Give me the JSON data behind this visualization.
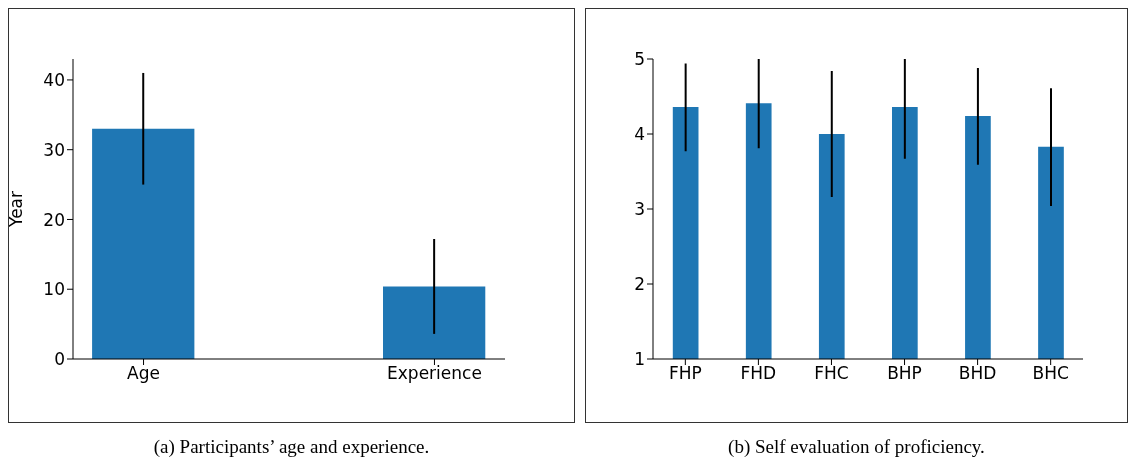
{
  "chart_data": [
    {
      "type": "bar",
      "ylabel": "Year",
      "categories": [
        "Age",
        "Experience"
      ],
      "values": [
        33,
        10.4
      ],
      "errors": [
        [
          25,
          41
        ],
        [
          3.6,
          17.2
        ]
      ],
      "color": "#1f77b4",
      "ylim": [
        0,
        43
      ],
      "yticks": [
        0,
        10,
        20,
        30,
        40
      ],
      "annotations": [
        "(a) Participants’ age and experience."
      ]
    },
    {
      "type": "bar",
      "categories": [
        "FHP",
        "FHD",
        "FHC",
        "BHP",
        "BHD",
        "BHC"
      ],
      "values": [
        4.36,
        4.41,
        4.0,
        4.36,
        4.24,
        3.83
      ],
      "errors": [
        [
          3.77,
          4.94
        ],
        [
          3.81,
          5
        ],
        [
          3.16,
          4.84
        ],
        [
          3.67,
          5
        ],
        [
          3.59,
          4.88
        ],
        [
          3.04,
          4.61
        ]
      ],
      "color": "#1f77b4",
      "ylim": [
        1,
        5
      ],
      "yticks": [
        1,
        2,
        3,
        4,
        5
      ],
      "annotations": [
        "(b) Self evaluation of proficiency."
      ]
    }
  ]
}
